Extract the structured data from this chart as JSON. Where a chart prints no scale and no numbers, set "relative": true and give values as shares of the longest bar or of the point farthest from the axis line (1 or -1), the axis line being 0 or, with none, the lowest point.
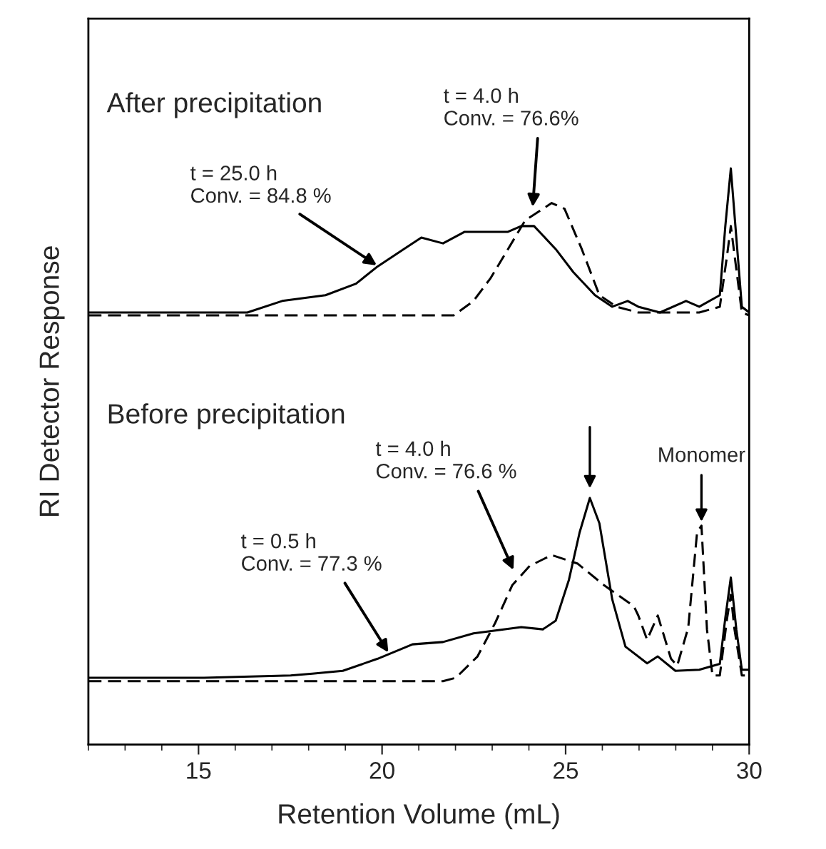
{
  "chart_data": {
    "type": "line",
    "relative": true,
    "xlabel": "Retention Volume (mL)",
    "ylabel": "RI Detector Response",
    "xlim": [
      12,
      30
    ],
    "xticks": [
      15,
      20,
      25,
      30
    ],
    "grid": false,
    "marker": "none",
    "series": [
      {
        "color": "#000000",
        "line_style": "solid",
        "x": [
          12,
          16.33,
          17.28,
          18.46,
          19.29,
          19.88,
          20.59,
          21.07,
          21.66,
          22.25,
          22.84,
          23.43,
          23.79,
          24.14,
          24.73,
          25.21,
          25.8,
          26.27,
          26.69,
          26.98,
          27.57,
          28.28,
          28.64,
          29.2,
          29.35,
          29.5,
          29.65,
          29.8,
          30
        ],
        "values": [
          0.75,
          0.75,
          0.77,
          0.78,
          0.8,
          0.83,
          0.86,
          0.88,
          0.87,
          0.89,
          0.89,
          0.89,
          0.9,
          0.9,
          0.86,
          0.82,
          0.78,
          0.76,
          0.77,
          0.76,
          0.75,
          0.77,
          0.76,
          0.78,
          0.9,
          1.0,
          0.88,
          0.76,
          0.75
        ]
      },
      {
        "color": "#000000",
        "line_style": "dashed",
        "x": [
          12,
          16.3,
          20,
          21.95,
          22.49,
          22.96,
          23.43,
          23.9,
          24.62,
          24.97,
          25.44,
          25.92,
          26.39,
          26.98,
          28.64,
          29.2,
          29.4,
          29.5,
          29.6,
          29.8,
          30
        ],
        "values": [
          0.745,
          0.745,
          0.745,
          0.745,
          0.77,
          0.81,
          0.86,
          0.91,
          0.94,
          0.93,
          0.86,
          0.78,
          0.76,
          0.75,
          0.75,
          0.76,
          0.85,
          0.9,
          0.85,
          0.75,
          0.745
        ]
      },
      {
        "color": "#000000",
        "line_style": "solid",
        "x": [
          12,
          15.15,
          17.51,
          18.1,
          18.93,
          19.88,
          20.83,
          21.66,
          22.49,
          23.2,
          23.79,
          24.38,
          24.73,
          25.09,
          25.38,
          25.66,
          25.92,
          26.27,
          26.63,
          27.22,
          27.51,
          27.99,
          28.64,
          29.2,
          29.35,
          29.5,
          29.65,
          29.8,
          30
        ],
        "values": [
          0.116,
          0.116,
          0.12,
          0.123,
          0.128,
          0.149,
          0.174,
          0.178,
          0.193,
          0.199,
          0.204,
          0.2,
          0.215,
          0.286,
          0.368,
          0.428,
          0.384,
          0.252,
          0.17,
          0.141,
          0.153,
          0.128,
          0.13,
          0.14,
          0.22,
          0.29,
          0.2,
          0.13,
          0.13
        ]
      },
      {
        "color": "#000000",
        "line_style": "dashed",
        "x": [
          12,
          15.15,
          17.5,
          21.66,
          22.01,
          22.6,
          23.08,
          23.55,
          24.02,
          24.62,
          25.33,
          26.04,
          26.86,
          26.98,
          27.22,
          27.51,
          27.87,
          28.04,
          28.34,
          28.58,
          28.7,
          28.85,
          29.0,
          29.2,
          29.4,
          29.5,
          29.6,
          29.8,
          30
        ],
        "values": [
          0.11,
          0.11,
          0.11,
          0.11,
          0.116,
          0.153,
          0.211,
          0.277,
          0.31,
          0.329,
          0.314,
          0.277,
          0.24,
          0.224,
          0.182,
          0.224,
          0.149,
          0.137,
          0.203,
          0.368,
          0.38,
          0.2,
          0.12,
          0.12,
          0.22,
          0.26,
          0.2,
          0.12,
          0.12
        ]
      }
    ],
    "annotations": [
      "After precipitation",
      "Before precipitation",
      {
        "text": "t = 25.0 h\nConv. = 84.8 %",
        "x": 19.9,
        "y": 0.83
      },
      {
        "text": "t = 4.0 h\nConv. = 76.6%",
        "x": 24.1,
        "y": 0.93
      },
      {
        "text": "t = 0.5 h\nConv. = 77.3 %",
        "x": 20.2,
        "y": 0.157
      },
      {
        "text": "t = 4.0 h\nConv. = 76.6 %",
        "x": 23.6,
        "y": 0.3
      },
      {
        "text": "Monomer",
        "x": 28.7,
        "y": 0.38
      }
    ]
  }
}
